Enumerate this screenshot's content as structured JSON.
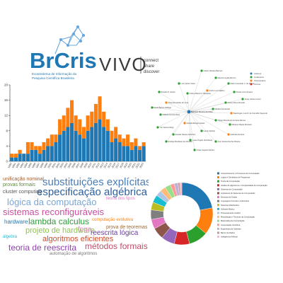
{
  "brand": {
    "logo_text": "BrCris",
    "logo_subtitle_1": "Ecossistema de Informação da",
    "logo_subtitle_2": "Pesquisa Científica Brasileira",
    "vivo_text": "VIVO",
    "vivo_tag_1": "connect",
    "vivo_tag_2": "share",
    "vivo_tag_3": "discover",
    "colors": {
      "brcris_blue": "#1f78b4",
      "brcris_dark": "#16325c",
      "vivo_gray": "#3a3a3a"
    }
  },
  "chart_data": {
    "type": "bar",
    "stacked": true,
    "categories": [
      "1990",
      "1991",
      "1992",
      "1993",
      "1994",
      "1995",
      "1996",
      "1997",
      "1998",
      "1999",
      "2000",
      "2001",
      "2002",
      "2003",
      "2004",
      "2005",
      "2006",
      "2007",
      "2008",
      "2009",
      "2010",
      "2011",
      "2012",
      "2013",
      "2014",
      "2015",
      "2016",
      "2017",
      "2018",
      "2019",
      "2020",
      "2021",
      "2022",
      "2023"
    ],
    "series": [
      {
        "color": "#1f77b4",
        "values": [
          1,
          1,
          2,
          2,
          2,
          3,
          3,
          2,
          3,
          4,
          4,
          5,
          7,
          8,
          9,
          10,
          8,
          7,
          6,
          8,
          9,
          10,
          11,
          9,
          8,
          5,
          6,
          5,
          4,
          4,
          3,
          4,
          3,
          4
        ]
      },
      {
        "color": "#ff7f0e",
        "values": [
          1,
          1,
          1,
          0,
          3,
          2,
          1,
          2,
          2,
          2,
          3,
          2,
          4,
          4,
          5,
          6,
          4,
          4,
          3,
          4,
          4,
          5,
          6,
          4,
          3,
          3,
          3,
          2,
          2,
          3,
          2,
          2,
          1,
          1
        ]
      }
    ],
    "ylim": [
      0,
      20
    ],
    "yticks": [
      "0",
      "4",
      "8",
      "12",
      "16",
      "20"
    ],
    "grid": false
  },
  "graph": {
    "center": "Marcelo Pereira da Silva",
    "nodes": [
      {
        "label": "Cleber Nicolau Barroso",
        "color": "#2ca02c"
      },
      {
        "label": "Mauricio Ayala-Rincón",
        "color": "#2ca02c"
      },
      {
        "label": "Flávio Leonardo C. de Moura",
        "color": "#2ca02c"
      },
      {
        "label": "André Luiz Galdino",
        "color": "#ff7f0e"
      },
      {
        "label": "Daniel Lima Ventura",
        "color": "#2ca02c"
      },
      {
        "label": "Carlos Alberto F. Mesquita",
        "color": "#2ca02c"
      },
      {
        "label": "Ricardo P. Jacobi",
        "color": "#2ca02c"
      },
      {
        "label": "Thaynara Arielly de Lima",
        "color": "#ff7f0e"
      },
      {
        "label": "Ariane Alves Almeida",
        "color": "#2ca02c"
      },
      {
        "label": "Washington Luís R. de Carvalho Segundo",
        "color": "#ff7f0e"
      },
      {
        "label": "Gabriel Ferreira Silva",
        "color": "#2ca02c"
      },
      {
        "label": "Yuri Santos Rêgo",
        "color": "#2ca02c"
      },
      {
        "label": "Daniele Nantes Sobrinho",
        "color": "#2ca02c"
      },
      {
        "label": "Rodrigo Bonifácio de Almeida",
        "color": "#2ca02c"
      },
      {
        "label": "Lucas Ângelo da Silveira",
        "color": "#2ca02c"
      },
      {
        "label": "Laura Carlotto",
        "color": "#2ca02c"
      },
      {
        "label": "Ana Cristina Rocha Oliveira",
        "color": "#2ca02c"
      },
      {
        "label": "Gabriela Ferreira",
        "color": "#ff7f0e"
      },
      {
        "label": "Mariano Miguel Moscato",
        "color": "#2ca02c"
      },
      {
        "label": "Thiago Mendonça Ferreira Ramos",
        "color": "#2ca02c"
      },
      {
        "label": "César Augusto Muñoz",
        "color": "#2ca02c"
      },
      {
        "label": "Andréia Borges Avelar",
        "color": "#ff7f0e"
      },
      {
        "label": "David Barros Hidalgo",
        "color": "#2ca02c"
      },
      {
        "label": "Maribel Fernández",
        "color": "#2ca02c"
      },
      {
        "label": "Jorge Carlos Lucero",
        "color": "#2ca02c"
      },
      {
        "label": "Luiz Carlos Vieira",
        "color": "#2ca02c"
      }
    ],
    "legend": [
      {
        "label": "Autores",
        "color": "#1f77b4"
      },
      {
        "label": "Coautores",
        "color": "#2ca02c"
      },
      {
        "label": "Orientandos",
        "color": "#ff7f0e"
      },
      {
        "label": "Outros",
        "color": "#d62728"
      }
    ]
  },
  "cloud": {
    "words": [
      {
        "text": "substituições explícitas",
        "color": "#4a7db8",
        "size": 15
      },
      {
        "text": "especificação algébrica",
        "color": "#2b5fa0",
        "size": 15
      },
      {
        "text": "lógica da computação",
        "color": "#7ba7d4",
        "size": 13
      },
      {
        "text": "sistemas reconfiguráveis",
        "color": "#c94fa0",
        "size": 13
      },
      {
        "text": "lambda calculus",
        "color": "#2e9a3a",
        "size": 12
      },
      {
        "text": "projeto de hardware",
        "color": "#8bc34a",
        "size": 11
      },
      {
        "text": "reescrita lógica",
        "color": "#6a3d9a",
        "size": 10
      },
      {
        "text": "algoritmos eficientes",
        "color": "#d14b2b",
        "size": 11
      },
      {
        "text": "teoria de reescrita",
        "color": "#8e44ad",
        "size": 12
      },
      {
        "text": "métodos formais",
        "color": "#c0506b",
        "size": 12
      },
      {
        "text": "fpga",
        "color": "#e08dbd",
        "size": 10
      },
      {
        "text": "unificação nominal",
        "color": "#a05a2c",
        "size": 7
      },
      {
        "text": "provas formais",
        "color": "#5b8a3c",
        "size": 7
      },
      {
        "text": "cluster computing",
        "color": "#555555",
        "size": 7
      },
      {
        "text": "prova de teoremas",
        "color": "#9c6b3a",
        "size": 7
      },
      {
        "text": "automação de algoritmos",
        "color": "#777777",
        "size": 6
      },
      {
        "text": "hardware",
        "color": "#1f77b4",
        "size": 8
      },
      {
        "text": "teoria dos tipos",
        "color": "#e377c2",
        "size": 6
      },
      {
        "text": "computação evolutiva",
        "color": "#ff7f0e",
        "size": 6
      },
      {
        "text": "álgebra",
        "color": "#17becf",
        "size": 6
      }
    ]
  },
  "donut": {
    "slices": [
      {
        "label": "Comportamento e Processos de Computação",
        "value": 22,
        "color": "#1f77b4"
      },
      {
        "label": "Lógica e Semântica de Programas",
        "value": 14,
        "color": "#ff7f0e"
      },
      {
        "label": "Teoria da Computação",
        "value": 10,
        "color": "#2ca02c"
      },
      {
        "label": "Análise de Algoritmos e Complexidade de Computação",
        "value": 8,
        "color": "#d62728"
      },
      {
        "label": "Sistemas de Computação",
        "value": 7,
        "color": "#9467bd"
      },
      {
        "label": "Arquitetura de Sistemas de Computação",
        "value": 6,
        "color": "#8c564b"
      },
      {
        "label": "Estrutura de Dados",
        "value": 5,
        "color": "#e377c2"
      },
      {
        "label": "Linguagens Formais e Autômatos",
        "value": 5,
        "color": "#7f7f7f"
      },
      {
        "label": "Sistemas Distribuídos",
        "value": 4,
        "color": "#bcbd22"
      },
      {
        "label": "Software Básico",
        "value": 4,
        "color": "#17becf"
      },
      {
        "label": "Processamento Gráfico",
        "value": 3,
        "color": "#aec7e8"
      },
      {
        "label": "Metodologia e Técnicas da Computação",
        "value": 3,
        "color": "#ffbb78"
      },
      {
        "label": "Matemática da Computação",
        "value": 3,
        "color": "#98df8a"
      },
      {
        "label": "Computação Científica",
        "value": 2,
        "color": "#ff9896"
      },
      {
        "label": "Engenharia de Software",
        "value": 2,
        "color": "#c5b0d5"
      },
      {
        "label": "Banco de Dados",
        "value": 1,
        "color": "#c49c94"
      },
      {
        "label": "Inteligência Artificial",
        "value": 1,
        "color": "#f7b6d2"
      }
    ]
  }
}
